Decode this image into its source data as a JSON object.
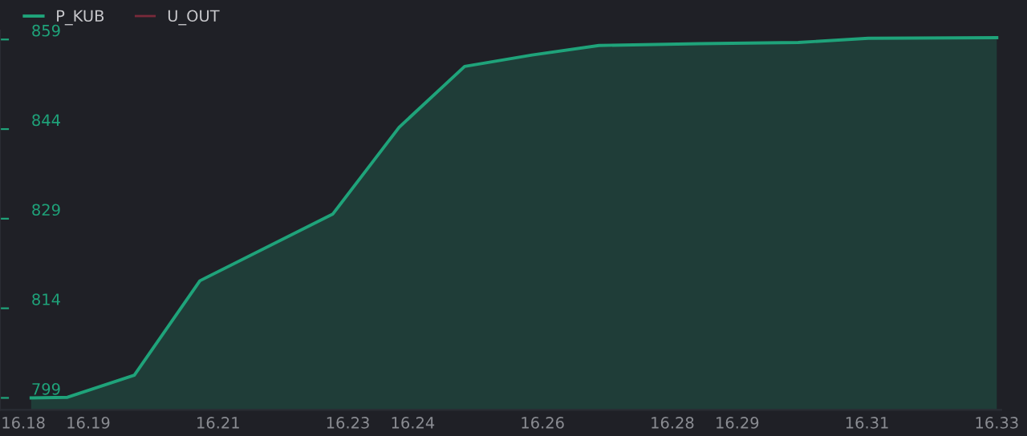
{
  "chart_data": {
    "type": "area",
    "x": [
      16.1812,
      16.1868,
      16.1971,
      16.2072,
      16.2277,
      16.2379,
      16.248,
      16.2584,
      16.2687,
      16.2842,
      16.2994,
      16.3102,
      16.33
    ],
    "series": [
      {
        "name": "P_KUB",
        "color": "#1fa37a",
        "values": [
          799,
          799.1,
          802.8,
          818.6,
          829.8,
          844.3,
          854.5,
          856.4,
          858,
          858.3,
          858.5,
          859.2,
          859.3
        ]
      },
      {
        "name": "U_OUT",
        "color": "#7a2a3a",
        "type": "line",
        "values": [
          null,
          null,
          null,
          null,
          null,
          null,
          null,
          null,
          null,
          null,
          null,
          null,
          null
        ]
      }
    ],
    "xlim": [
      16.1764,
      16.3307
    ],
    "ylim": [
      797,
      860.5
    ],
    "xticks": [
      16.18,
      16.19,
      16.21,
      16.23,
      16.24,
      16.26,
      16.28,
      16.29,
      16.31,
      16.33
    ],
    "yticks": [
      799,
      814,
      829,
      844,
      859
    ],
    "grid": false,
    "legend": "top left"
  }
}
